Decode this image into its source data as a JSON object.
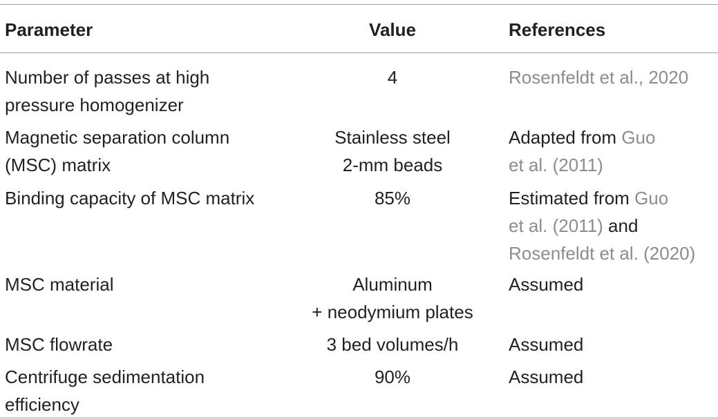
{
  "table": {
    "headers": {
      "parameter": "Parameter",
      "value": "Value",
      "references": "References"
    },
    "rows": [
      {
        "parameter": [
          "Number of passes at high",
          "pressure homogenizer"
        ],
        "value": [
          "4"
        ],
        "references": [
          [
            {
              "text": "Rosenfeldt et al., 2020",
              "link": true
            }
          ]
        ]
      },
      {
        "parameter": [
          "Magnetic separation column",
          "(MSC) matrix"
        ],
        "value": [
          "Stainless steel",
          "2-mm beads"
        ],
        "references": [
          [
            {
              "text": "Adapted from ",
              "link": false
            },
            {
              "text": "Guo",
              "link": true
            }
          ],
          [
            {
              "text": "et al. (2011)",
              "link": true
            }
          ]
        ]
      },
      {
        "parameter": [
          "Binding capacity of MSC matrix"
        ],
        "value": [
          "85%"
        ],
        "references": [
          [
            {
              "text": "Estimated from ",
              "link": false
            },
            {
              "text": "Guo",
              "link": true
            }
          ],
          [
            {
              "text": "et al. (2011)",
              "link": true
            },
            {
              "text": " and",
              "link": false
            }
          ],
          [
            {
              "text": "Rosenfeldt et al. (2020)",
              "link": true
            }
          ]
        ]
      },
      {
        "parameter": [
          "MSC material"
        ],
        "value": [
          "Aluminum",
          "+ neodymium plates"
        ],
        "references": [
          [
            {
              "text": "Assumed",
              "link": false
            }
          ]
        ]
      },
      {
        "parameter": [
          "MSC flowrate"
        ],
        "value": [
          "3 bed volumes/h"
        ],
        "references": [
          [
            {
              "text": "Assumed",
              "link": false
            }
          ]
        ]
      },
      {
        "parameter": [
          "Centrifuge sedimentation",
          "efficiency"
        ],
        "value": [
          "90%"
        ],
        "references": [
          [
            {
              "text": "Assumed",
              "link": false
            }
          ]
        ]
      }
    ]
  }
}
